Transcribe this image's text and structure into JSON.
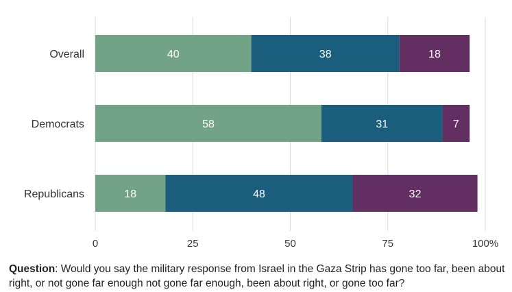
{
  "chart_data": {
    "type": "bar",
    "orientation": "horizontal",
    "stacked": true,
    "categories": [
      "Overall",
      "Democrats",
      "Republicans"
    ],
    "series": [
      {
        "values": [
          40,
          58,
          18
        ],
        "color": "#72a387"
      },
      {
        "values": [
          38,
          31,
          48
        ],
        "color": "#1b5d7c"
      },
      {
        "values": [
          18,
          7,
          32
        ],
        "color": "#632f63"
      }
    ],
    "xlim": [
      0,
      100
    ],
    "x_ticks": [
      "0",
      "25",
      "50",
      "75",
      "100%"
    ],
    "x_tick_values": [
      0,
      25,
      50,
      75,
      100
    ],
    "grid": true,
    "legend": "none"
  },
  "footer": {
    "question_label": "Question",
    "question_text": ": Would you say the military response from Israel in the Gaza Strip has gone too far, been about right, or not gone far enough not gone far enough, been about right, or gone too far?"
  }
}
